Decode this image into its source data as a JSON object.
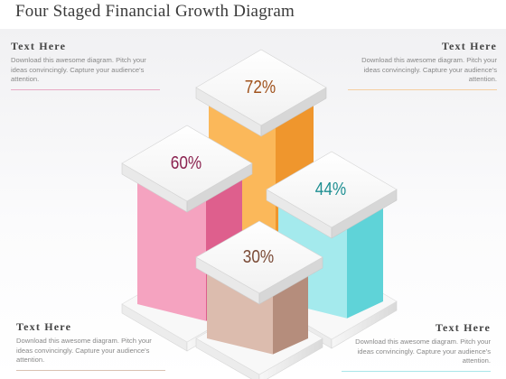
{
  "title": "Four Staged Financial Growth Diagram",
  "notes": [
    {
      "heading": "Text Here",
      "body": "Download this awesome diagram. Pitch your ideas convincingly.  Capture your audience's attention.",
      "line_color": "#e8a9c4"
    },
    {
      "heading": "Text Here",
      "body": "Download this awesome diagram. Pitch your ideas convincingly.  Capture your audience's attention.",
      "line_color": "#f5cfa1"
    },
    {
      "heading": "Text Here",
      "body": "Download this awesome diagram. Pitch your ideas convincingly.  Capture your audience's attention.",
      "line_color": "#d9c3b3"
    },
    {
      "heading": "Text Here",
      "body": "Download this awesome diagram. Pitch your ideas convincingly.  Capture your audience's attention.",
      "line_color": "#a9e6ea"
    }
  ],
  "stages": [
    {
      "label": "72%",
      "label_color": "#a0521c",
      "front": "#fbb85a",
      "side": "#ef962d"
    },
    {
      "label": "60%",
      "label_color": "#8b2350",
      "front": "#f5a3c0",
      "side": "#de5f8d"
    },
    {
      "label": "44%",
      "label_color": "#1e8f92",
      "front": "#a4eaed",
      "side": "#5fd3d8"
    },
    {
      "label": "30%",
      "label_color": "#7a4a36",
      "front": "#dcbcae",
      "side": "#b58d7c"
    }
  ]
}
